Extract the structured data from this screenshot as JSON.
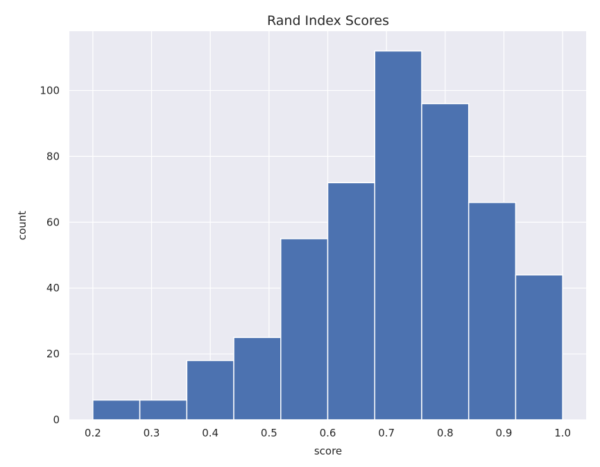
{
  "chart_data": {
    "type": "bar",
    "title": "Rand Index Scores",
    "xlabel": "score",
    "ylabel": "count",
    "xlim": [
      0.16,
      1.04
    ],
    "ylim": [
      0,
      118
    ],
    "x_ticks": [
      "0.2",
      "0.3",
      "0.4",
      "0.5",
      "0.6",
      "0.7",
      "0.8",
      "0.9",
      "1.0"
    ],
    "y_ticks": [
      "0",
      "20",
      "40",
      "60",
      "80",
      "100"
    ],
    "bins": [
      {
        "start": 0.2,
        "end": 0.28,
        "count": 6
      },
      {
        "start": 0.28,
        "end": 0.36,
        "count": 6
      },
      {
        "start": 0.36,
        "end": 0.44,
        "count": 18
      },
      {
        "start": 0.44,
        "end": 0.52,
        "count": 25
      },
      {
        "start": 0.52,
        "end": 0.6,
        "count": 55
      },
      {
        "start": 0.6,
        "end": 0.68,
        "count": 72
      },
      {
        "start": 0.68,
        "end": 0.76,
        "count": 112
      },
      {
        "start": 0.76,
        "end": 0.84,
        "count": 96
      },
      {
        "start": 0.84,
        "end": 0.92,
        "count": 66
      },
      {
        "start": 0.92,
        "end": 1.0,
        "count": 44
      }
    ],
    "grid": true,
    "colors": {
      "bar": "#4c72b0",
      "background": "#eaeaf2",
      "grid": "#ffffff",
      "text": "#262626"
    }
  }
}
